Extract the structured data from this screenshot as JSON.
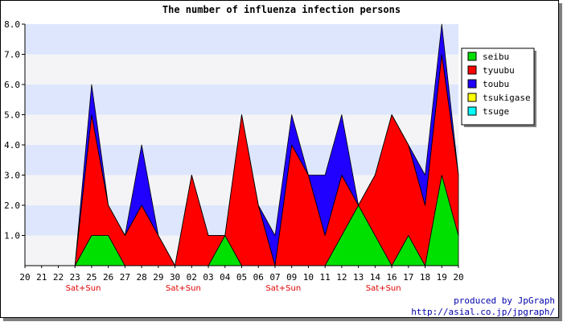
{
  "chart_data": {
    "type": "area",
    "stacked": true,
    "title": "The number of influenza infection persons",
    "categories": [
      "20",
      "21",
      "22",
      "23",
      "25",
      "26",
      "27",
      "28",
      "29",
      "30",
      "02",
      "03",
      "04",
      "05",
      "06",
      "07",
      "09",
      "10",
      "11",
      "12",
      "13",
      "14",
      "16",
      "17",
      "18",
      "19",
      "20"
    ],
    "weekend_labels": [
      {
        "after_index": 3,
        "text": "Sat+Sun"
      },
      {
        "after_index": 9,
        "text": "Sat+Sun"
      },
      {
        "after_index": 15,
        "text": "Sat+Sun"
      },
      {
        "after_index": 21,
        "text": "Sat+Sun"
      }
    ],
    "ylim": [
      0,
      8
    ],
    "yticks": [
      "1.0",
      "2.0",
      "3.0",
      "4.0",
      "5.0",
      "6.0",
      "7.0",
      "8.0"
    ],
    "grid": true,
    "legend_position": "right",
    "series": [
      {
        "name": "seibu",
        "color": "#00e000",
        "values": [
          0,
          0,
          0,
          0,
          1,
          1,
          0,
          0,
          0,
          0,
          0,
          0,
          1,
          0,
          0,
          0,
          0,
          0,
          0,
          1,
          2,
          1,
          0,
          1,
          0,
          3,
          1
        ]
      },
      {
        "name": "tyuubu",
        "color": "#ff0000",
        "values": [
          0,
          0,
          0,
          0,
          4,
          1,
          1,
          2,
          1,
          0,
          3,
          1,
          0,
          5,
          2,
          0,
          4,
          3,
          1,
          2,
          0,
          2,
          5,
          3,
          2,
          4,
          2
        ]
      },
      {
        "name": "toubu",
        "color": "#2000ff",
        "values": [
          0,
          0,
          0,
          0,
          1,
          0,
          0,
          2,
          0,
          0,
          0,
          0,
          0,
          0,
          0,
          1,
          1,
          0,
          2,
          2,
          0,
          0,
          0,
          0,
          1,
          1,
          0
        ]
      },
      {
        "name": "tsukigase",
        "color": "#ffff00",
        "values": [
          0,
          0,
          0,
          0,
          0,
          0,
          0,
          0,
          0,
          0,
          0,
          0,
          0,
          0,
          0,
          0,
          0,
          0,
          0,
          0,
          0,
          0,
          0,
          0,
          0,
          0,
          0
        ]
      },
      {
        "name": "tsuge",
        "color": "#00ffff",
        "values": [
          0,
          0,
          0,
          0,
          0,
          0,
          0,
          0,
          0,
          0,
          0,
          0,
          0,
          0,
          0,
          0,
          0,
          0,
          0,
          0,
          0,
          0,
          0,
          0,
          0,
          0,
          0
        ]
      }
    ]
  },
  "footer": {
    "credit_line1": "produced by JpGraph",
    "credit_line2": "http://asial.co.jp/jpgraph/"
  }
}
